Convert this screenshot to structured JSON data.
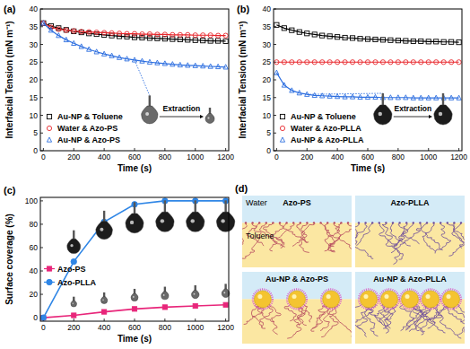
{
  "chart_data": [
    {
      "type": "line",
      "title": "(a)",
      "x_label": "Time (s)",
      "y_label": "Interfacial Tension (mN m⁻¹)",
      "x": [
        0,
        50,
        100,
        150,
        200,
        250,
        300,
        350,
        400,
        450,
        500,
        550,
        600,
        650,
        700,
        750,
        800,
        850,
        900,
        950,
        1000,
        1050,
        1100,
        1150,
        1200
      ],
      "series": [
        {
          "name": "Au-NP & Toluene",
          "color": "#000000",
          "marker": "square-open",
          "line_style": "solid",
          "values": [
            36,
            35.2,
            34.6,
            34.1,
            33.7,
            33.4,
            33.1,
            32.9,
            32.7,
            32.5,
            32.3,
            32.2,
            32.0,
            31.9,
            31.8,
            31.7,
            31.6,
            31.5,
            31.4,
            31.3,
            31.2,
            31.1,
            31.0,
            31.0,
            30.9
          ]
        },
        {
          "name": "Water & Azo-PS",
          "color": "#e8262b",
          "marker": "circle-open",
          "line_style": "solid",
          "values": [
            36,
            34.8,
            34.3,
            34.0,
            33.8,
            33.6,
            33.5,
            33.4,
            33.3,
            33.2,
            33.1,
            33.0,
            33.0,
            32.9,
            32.9,
            32.8,
            32.8,
            32.7,
            32.7,
            32.7,
            32.6,
            32.6,
            32.6,
            32.5,
            32.5
          ]
        },
        {
          "name": "Au-NP & Azo-PS",
          "color": "#2e6fe0",
          "marker": "triangle-open",
          "line_style": "solid",
          "values": [
            36,
            34,
            32.5,
            31.3,
            30.3,
            29.4,
            28.6,
            27.9,
            27.3,
            26.8,
            26.3,
            25.9,
            25.6,
            25.3,
            25.0,
            24.8,
            24.6,
            24.4,
            24.2,
            24.1,
            24.0,
            23.9,
            23.8,
            23.7,
            23.6
          ]
        }
      ],
      "xlim": [
        -20,
        1220
      ],
      "xticks": [
        0,
        200,
        400,
        600,
        800,
        1000,
        1200
      ],
      "ylim": [
        0,
        40
      ],
      "yticks": [
        0,
        5,
        10,
        15,
        20,
        25,
        30,
        35,
        40
      ],
      "legend": "lower-left",
      "annotations": [
        "Extraction"
      ]
    },
    {
      "type": "line",
      "title": "(b)",
      "x_label": "Time (s)",
      "y_label": "Interfacial Tension (mN m⁻¹)",
      "x": [
        0,
        50,
        100,
        150,
        200,
        250,
        300,
        350,
        400,
        450,
        500,
        550,
        600,
        650,
        700,
        750,
        800,
        850,
        900,
        950,
        1000,
        1050,
        1100,
        1150,
        1200
      ],
      "series": [
        {
          "name": "Au-NP & Toluene",
          "color": "#000000",
          "marker": "square-open",
          "line_style": "solid",
          "values": [
            35.5,
            34.6,
            34.0,
            33.5,
            33.1,
            32.8,
            32.5,
            32.3,
            32.1,
            31.9,
            31.8,
            31.6,
            31.5,
            31.4,
            31.3,
            31.2,
            31.1,
            31.0,
            30.9,
            30.9,
            30.8,
            30.8,
            30.7,
            30.7,
            30.6
          ]
        },
        {
          "name": "Water & Azo-PLLA",
          "color": "#e8262b",
          "marker": "circle-open",
          "line_style": "solid",
          "values": [
            25,
            25,
            25,
            25,
            25,
            25,
            25,
            25,
            25,
            25,
            25,
            25,
            25,
            25,
            25,
            25,
            25,
            25,
            25,
            25,
            25,
            25,
            25,
            25,
            25
          ]
        },
        {
          "name": "Au-NP & Azo-PLLA",
          "color": "#2e6fe0",
          "marker": "triangle-open",
          "line_style": "solid",
          "values": [
            22,
            18.5,
            17,
            16.3,
            15.9,
            15.6,
            15.5,
            15.4,
            15.3,
            15.2,
            15.2,
            15.1,
            15.1,
            15.1,
            15.0,
            15.0,
            15.0,
            15.0,
            14.9,
            14.9,
            14.9,
            14.9,
            14.9,
            14.9,
            14.9
          ]
        }
      ],
      "xlim": [
        -20,
        1220
      ],
      "xticks": [
        0,
        200,
        400,
        600,
        800,
        1000,
        1200
      ],
      "ylim": [
        0,
        40
      ],
      "yticks": [
        0,
        5,
        10,
        15,
        20,
        25,
        30,
        35,
        40
      ],
      "legend": "lower-left",
      "annotations": [
        "Extraction"
      ]
    },
    {
      "type": "line",
      "title": "(c)",
      "x_label": "Time (s)",
      "y_label": "Surface coverage (%)",
      "x": [
        0,
        200,
        400,
        600,
        800,
        1000,
        1200
      ],
      "series": [
        {
          "name": "Azo-PS",
          "color": "#e8267a",
          "marker": "square",
          "line_style": "solid",
          "values": [
            0,
            2,
            5,
            7.5,
            9,
            10,
            11
          ]
        },
        {
          "name": "Azo-PLLA",
          "color": "#2f86e6",
          "marker": "circle",
          "line_style": "solid",
          "values": [
            0,
            48,
            82,
            97,
            100,
            100,
            100
          ]
        }
      ],
      "xlim": [
        -20,
        1220
      ],
      "xticks": [
        0,
        200,
        400,
        600,
        800,
        1000,
        1200
      ],
      "ylim": [
        -3,
        103
      ],
      "yticks": [
        0,
        20,
        40,
        60,
        80,
        100
      ],
      "legend": "center-left"
    }
  ],
  "schematic": {
    "title": "(d)",
    "phases": [
      "Water",
      "Toluene"
    ],
    "panels": [
      {
        "label": "Azo-PS",
        "nanoparticles": false,
        "color": "#b5475e"
      },
      {
        "label": "Azo-PLLA",
        "nanoparticles": false,
        "color": "#6b4a9a"
      },
      {
        "label": "Au-NP & Azo-PS",
        "nanoparticles": true,
        "color": "#b5475e"
      },
      {
        "label": "Au-NP & Azo-PLLA",
        "nanoparticles": true,
        "color": "#6b4a9a"
      }
    ]
  }
}
